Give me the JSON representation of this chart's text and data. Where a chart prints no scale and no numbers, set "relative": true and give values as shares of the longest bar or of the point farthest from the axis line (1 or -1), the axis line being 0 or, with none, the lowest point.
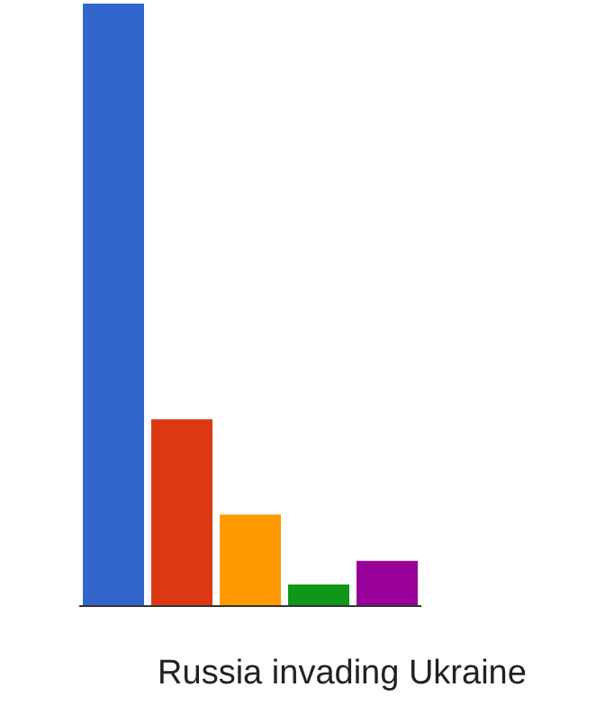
{
  "chart_data": {
    "type": "bar",
    "relative": true,
    "xlabel": "Russia invading Ukraine",
    "categories": [
      null,
      null,
      null,
      null,
      null
    ],
    "values": [
      1,
      0.31,
      0.152,
      0.036,
      0.075
    ],
    "colors": [
      "#3366cc",
      "#dc3912",
      "#ff9900",
      "#109618",
      "#990099"
    ]
  }
}
